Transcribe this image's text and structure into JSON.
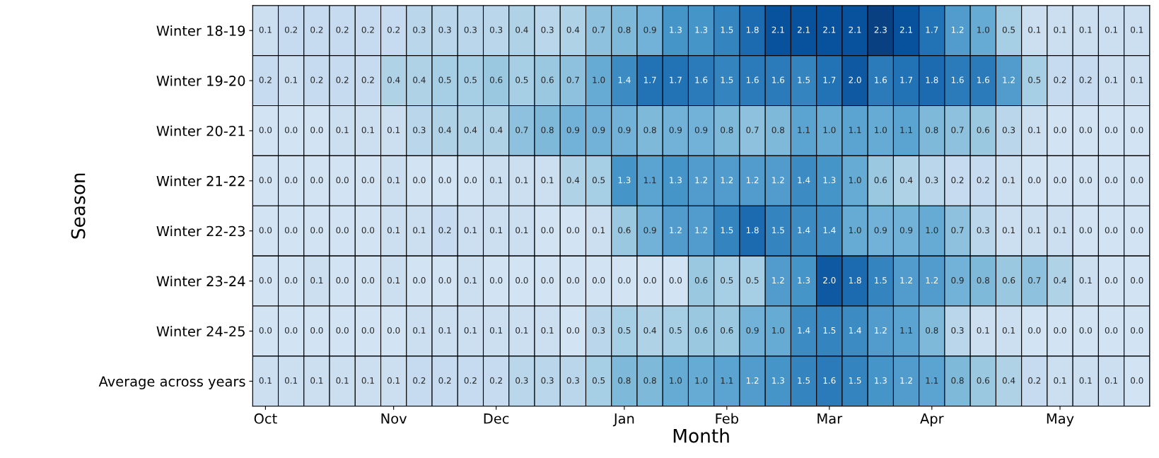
{
  "chart_data": {
    "type": "heatmap",
    "xlabel": "Month",
    "ylabel": "Season",
    "categories": [
      "Oct",
      null,
      null,
      null,
      null,
      "Nov",
      null,
      null,
      null,
      "Dec",
      null,
      null,
      null,
      null,
      "Jan",
      null,
      null,
      null,
      "Feb",
      null,
      null,
      null,
      "Mar",
      null,
      null,
      null,
      "Apr",
      null,
      null,
      null,
      null,
      "May",
      null,
      null,
      null
    ],
    "y_categories": [
      "Winter 18-19",
      "Winter 19-20",
      "Winter 20-21",
      "Winter 21-22",
      "Winter 22-23",
      "Winter 23-24",
      "Winter 24-25",
      "Average across years"
    ],
    "cells": [
      [
        0.1,
        0.2,
        0.2,
        0.2,
        0.2,
        0.2,
        0.3,
        0.3,
        0.3,
        0.3,
        0.4,
        0.3,
        0.4,
        0.7,
        0.8,
        0.9,
        1.3,
        1.3,
        1.5,
        1.8,
        2.1,
        2.1,
        2.1,
        2.1,
        2.3,
        2.1,
        1.7,
        1.2,
        1.0,
        0.5,
        0.1,
        0.1,
        0.1,
        0.1,
        0.1
      ],
      [
        0.2,
        0.1,
        0.2,
        0.2,
        0.2,
        0.4,
        0.4,
        0.5,
        0.5,
        0.6,
        0.5,
        0.6,
        0.7,
        1.0,
        1.4,
        1.7,
        1.7,
        1.6,
        1.5,
        1.6,
        1.6,
        1.5,
        1.7,
        2.0,
        1.6,
        1.7,
        1.8,
        1.6,
        1.6,
        1.2,
        0.5,
        0.2,
        0.2,
        0.1,
        0.1
      ],
      [
        0.0,
        0.0,
        0.0,
        0.1,
        0.1,
        0.1,
        0.3,
        0.4,
        0.4,
        0.4,
        0.7,
        0.8,
        0.9,
        0.9,
        0.9,
        0.8,
        0.9,
        0.9,
        0.8,
        0.7,
        0.8,
        1.1,
        1.0,
        1.1,
        1.0,
        1.1,
        0.8,
        0.7,
        0.6,
        0.3,
        0.1,
        0.0,
        0.0,
        0.0,
        0.0
      ],
      [
        0.0,
        0.0,
        0.0,
        0.0,
        0.0,
        0.1,
        0.0,
        0.0,
        0.0,
        0.1,
        0.1,
        0.1,
        0.4,
        0.5,
        1.3,
        1.1,
        1.3,
        1.2,
        1.2,
        1.2,
        1.2,
        1.4,
        1.3,
        1.0,
        0.6,
        0.4,
        0.3,
        0.2,
        0.2,
        0.1,
        0.0,
        0.0,
        0.0,
        0.0,
        0.0
      ],
      [
        0.0,
        0.0,
        0.0,
        0.0,
        0.0,
        0.1,
        0.1,
        0.2,
        0.1,
        0.1,
        0.1,
        0.0,
        0.0,
        0.1,
        0.6,
        0.9,
        1.2,
        1.2,
        1.5,
        1.8,
        1.5,
        1.4,
        1.4,
        1.0,
        0.9,
        0.9,
        1.0,
        0.7,
        0.3,
        0.1,
        0.1,
        0.1,
        0.0,
        0.0,
        0.0
      ],
      [
        0.0,
        0.0,
        0.1,
        0.0,
        0.0,
        0.1,
        0.0,
        0.0,
        0.1,
        0.0,
        0.0,
        0.0,
        0.0,
        0.0,
        0.0,
        0.0,
        0.0,
        0.6,
        0.5,
        0.5,
        1.2,
        1.3,
        2.0,
        1.8,
        1.5,
        1.2,
        1.2,
        0.9,
        0.8,
        0.6,
        0.7,
        0.4,
        0.1,
        0.0,
        0.0
      ],
      [
        0.0,
        0.0,
        0.0,
        0.0,
        0.0,
        0.0,
        0.1,
        0.1,
        0.1,
        0.1,
        0.1,
        0.1,
        0.0,
        0.3,
        0.5,
        0.4,
        0.5,
        0.6,
        0.6,
        0.9,
        1.0,
        1.4,
        1.5,
        1.4,
        1.2,
        1.1,
        0.8,
        0.3,
        0.1,
        0.1,
        0.0,
        0.0,
        0.0,
        0.0,
        0.0
      ],
      [
        0.1,
        0.1,
        0.1,
        0.1,
        0.1,
        0.1,
        0.2,
        0.2,
        0.2,
        0.2,
        0.3,
        0.3,
        0.3,
        0.5,
        0.8,
        0.8,
        1.0,
        1.0,
        1.1,
        1.2,
        1.3,
        1.5,
        1.6,
        1.5,
        1.3,
        1.2,
        1.1,
        0.8,
        0.6,
        0.4,
        0.2,
        0.1,
        0.1,
        0.1,
        0.0
      ]
    ],
    "cell_labels": [
      [
        "0.1",
        "0.2",
        "0.2",
        "0.2",
        "0.2",
        "0.2",
        "0.3",
        "0.3",
        "0.3",
        "0.3",
        "0.4",
        "0.3",
        "0.4",
        "0.7",
        "0.8",
        "0.9",
        "1.3",
        "1.3",
        "1.5",
        "1.8",
        "2.1",
        "2.1",
        "2.1",
        "2.1",
        "2.3",
        "2.1",
        "1.7",
        "1.2",
        "1.0",
        "0.5",
        "0.1",
        "0.1",
        "0.1",
        "0.1",
        "0.1"
      ],
      [
        "0.2",
        "0.1",
        "0.2",
        "0.2",
        "0.2",
        "0.4",
        "0.4",
        "0.5",
        "0.5",
        "0.6",
        "0.5",
        "0.6",
        "0.7",
        "1.0",
        "1.4",
        "1.7",
        "1.7",
        "1.6",
        "1.5",
        "1.6",
        "1.6",
        "1.5",
        "1.7",
        "2.0",
        "1.6",
        "1.7",
        "1.8",
        "1.6",
        "1.6",
        "1.2",
        "0.5",
        "0.2",
        "0.2",
        "0.1",
        "0.1"
      ],
      [
        "0.0",
        "0.0",
        "0.0",
        "0.1",
        "0.1",
        "0.1",
        "0.3",
        "0.4",
        "0.4",
        "0.4",
        "0.7",
        "0.8",
        "0.9",
        "0.9",
        "0.9",
        "0.8",
        "0.9",
        "0.9",
        "0.8",
        "0.7",
        "0.8",
        "1.1",
        "1.0",
        "1.1",
        "1.0",
        "1.1",
        "0.8",
        "0.7",
        "0.6",
        "0.3",
        "0.1",
        "0.0",
        "0.0",
        "0.0",
        "0.0"
      ],
      [
        "0.0",
        "0.0",
        "0.0",
        "0.0",
        "0.0",
        "0.1",
        "0.0",
        "0.0",
        "0.0",
        "0.1",
        "0.1",
        "0.1",
        "0.4",
        "0.5",
        "1.3",
        "1.1",
        "1.3",
        "1.2",
        "1.2",
        "1.2",
        "1.2",
        "1.4",
        "1.3",
        "1.0",
        "0.6",
        "0.4",
        "0.3",
        "0.2",
        "0.2",
        "0.1",
        "0.0",
        "0.0",
        "0.0",
        "0.0",
        "0.0"
      ],
      [
        "0.0",
        "0.0",
        "0.0",
        "0.0",
        "0.0",
        "0.1",
        "0.1",
        "0.2",
        "0.1",
        "0.1",
        "0.1",
        "0.0",
        "0.0",
        "0.1",
        "0.6",
        "0.9",
        "1.2",
        "1.2",
        "1.5",
        "1.8",
        "1.5",
        "1.4",
        "1.4",
        "1.0",
        "0.9",
        "0.9",
        "1.0",
        "0.7",
        "0.3",
        "0.1",
        "0.1",
        "0.1",
        "0.0",
        "0.0",
        "0.0"
      ],
      [
        "0.0",
        "0.0",
        "0.1",
        "0.0",
        "0.0",
        "0.1",
        "0.0",
        "0.0",
        "0.1",
        "0.0",
        "0.0",
        "0.0",
        "0.0",
        "0.0",
        "0.0",
        "0.0",
        "0.0",
        "0.6",
        "0.5",
        "0.5",
        "1.2",
        "1.3",
        "2.0",
        "1.8",
        "1.5",
        "1.2",
        "1.2",
        "0.9",
        "0.8",
        "0.6",
        "0.7",
        "0.4",
        "0.1",
        "0.0",
        "0.0"
      ],
      [
        "0.0",
        "0.0",
        "0.0",
        "0.0",
        "0.0",
        "0.0",
        "0.1",
        "0.1",
        "0.1",
        "0.1",
        "0.1",
        "0.1",
        "0.0",
        "0.3",
        "0.5",
        "0.4",
        "0.5",
        "0.6",
        "0.6",
        "0.9",
        "1.0",
        "1.4",
        "1.5",
        "1.4",
        "1.2",
        "1.1",
        "0.8",
        "0.3",
        "0.1",
        "0.1",
        "0.0",
        "0.0",
        "0.0",
        "0.0",
        "0.0"
      ],
      [
        "0.1",
        "0.1",
        "0.1",
        "0.1",
        "0.1",
        "0.1",
        "0.2",
        "0.2",
        "0.2",
        "0.2",
        "0.3",
        "0.3",
        "0.3",
        "0.5",
        "0.8",
        "0.8",
        "1.0",
        "1.0",
        "1.1",
        "1.2",
        "1.3",
        "1.5",
        "1.6",
        "1.5",
        "1.3",
        "1.2",
        "1.1",
        "0.8",
        "0.6",
        "0.4",
        "0.2",
        "0.1",
        "0.1",
        "0.1",
        "0.0"
      ]
    ],
    "data_labels": true
  }
}
